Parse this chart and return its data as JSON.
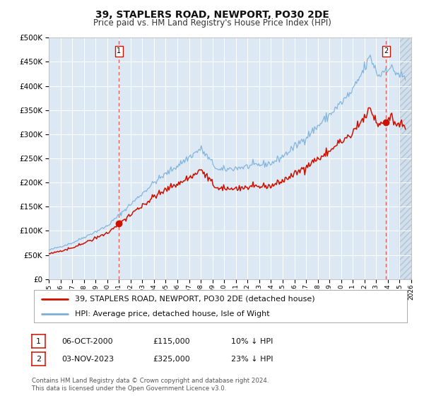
{
  "title": "39, STAPLERS ROAD, NEWPORT, PO30 2DE",
  "subtitle": "Price paid vs. HM Land Registry's House Price Index (HPI)",
  "bg_color": "#ffffff",
  "plot_bg_color": "#dde8f5",
  "grid_color": "#c8d4e8",
  "hpi_color": "#7ab0d8",
  "price_color": "#cc1100",
  "vline_color": "#dd3333",
  "sale1_date_num": 2001.0,
  "sale1_price": 115000,
  "sale2_date_num": 2023.84,
  "sale2_price": 325000,
  "ylim_max": 500000,
  "ylim_min": 0,
  "xlim_min": 1995,
  "xlim_max": 2026,
  "legend_label_price": "39, STAPLERS ROAD, NEWPORT, PO30 2DE (detached house)",
  "legend_label_hpi": "HPI: Average price, detached house, Isle of Wight",
  "annotation1_date": "06-OCT-2000",
  "annotation1_price": "£115,000",
  "annotation1_hpi": "10% ↓ HPI",
  "annotation2_date": "03-NOV-2023",
  "annotation2_price": "£325,000",
  "annotation2_hpi": "23% ↓ HPI",
  "footer": "Contains HM Land Registry data © Crown copyright and database right 2024.\nThis data is licensed under the Open Government Licence v3.0."
}
